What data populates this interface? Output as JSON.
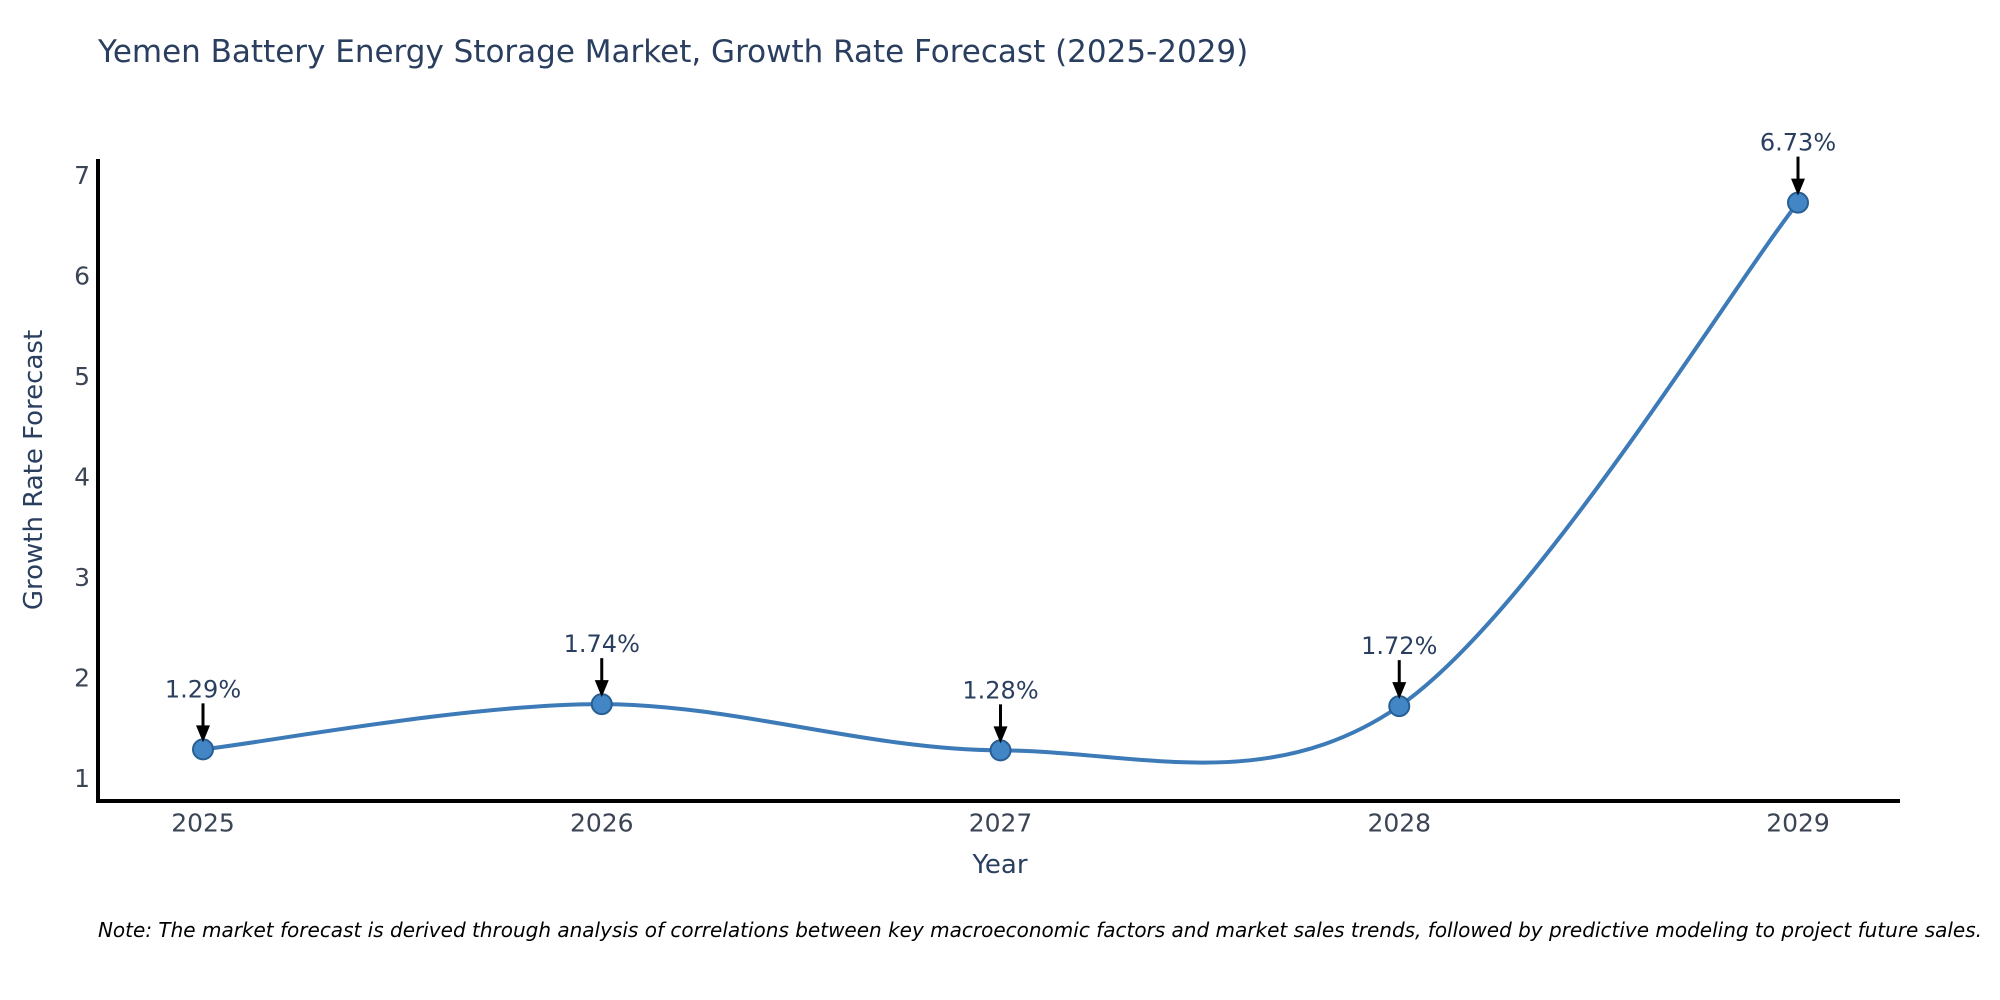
{
  "title": "Yemen Battery Energy Storage Market, Growth Rate Forecast (2025-2029)",
  "note": "Note: The market forecast is derived through analysis of correlations between key macroeconomic factors and market sales trends, followed by predictive modeling to project future sales.",
  "chart_data": {
    "type": "line",
    "title": "Yemen Battery Energy Storage Market, Growth Rate Forecast (2025-2029)",
    "xlabel": "Year",
    "ylabel": "Growth Rate Forecast",
    "categories": [
      "2025",
      "2026",
      "2027",
      "2028",
      "2029"
    ],
    "values": [
      1.29,
      1.74,
      1.28,
      1.72,
      6.73
    ],
    "point_labels": [
      "1.29%",
      "1.74%",
      "1.28%",
      "1.72%",
      "6.73%"
    ],
    "yticks": [
      1,
      2,
      3,
      4,
      5,
      6,
      7
    ],
    "ylim": [
      0.78,
      7.2
    ],
    "line_shape": "spline",
    "grid": false,
    "legend": "none",
    "annotation_style": "value label with downward arrow onto each point",
    "colors": {
      "line": "#3d7ab8",
      "marker_fill": "#4286c5",
      "marker_edge": "#275e93",
      "axis_line": "#000000",
      "arrow": "#000000",
      "tick_label": "#3b4554",
      "heading": "#2a3f5f",
      "note_text": "#000000",
      "background": "#ffffff"
    }
  }
}
